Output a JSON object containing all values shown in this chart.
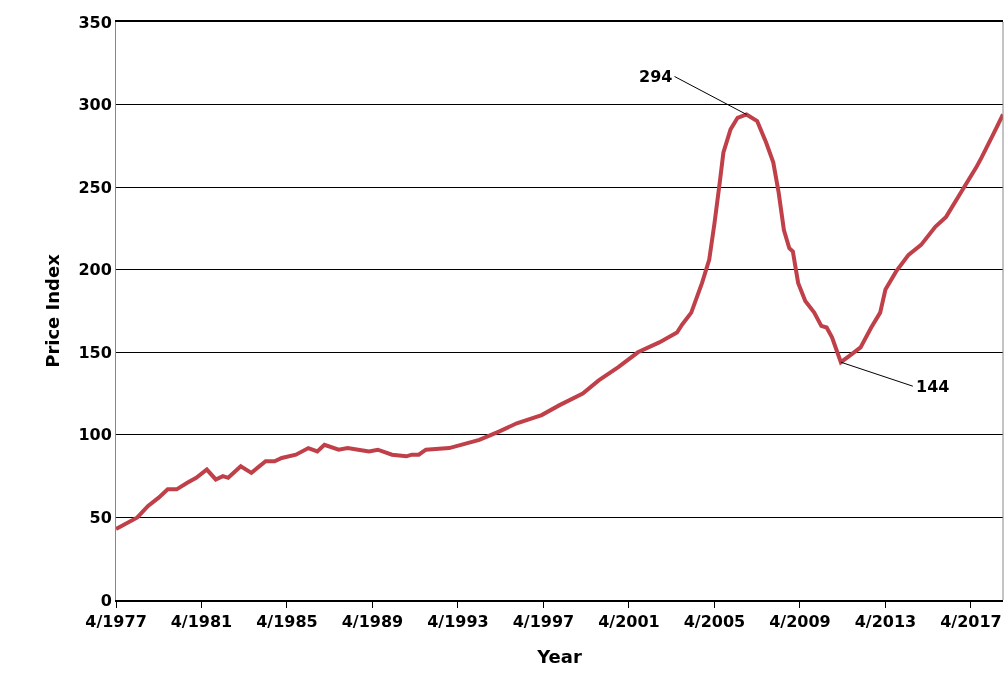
{
  "chart_data": {
    "type": "line",
    "xlabel": "Year",
    "ylabel": "Price Index",
    "x": [
      "1977-04",
      "1978-04",
      "1978-10",
      "1979-04",
      "1979-09",
      "1980-02",
      "1980-08",
      "1981-01",
      "1981-07",
      "1981-12",
      "1982-04",
      "1982-07",
      "1983-02",
      "1983-08",
      "1984-04",
      "1984-09",
      "1985-01",
      "1985-09",
      "1986-04",
      "1986-09",
      "1987-01",
      "1987-09",
      "1988-02",
      "1988-08",
      "1989-02",
      "1989-07",
      "1990-03",
      "1990-11",
      "1991-02",
      "1991-06",
      "1991-10",
      "1992-11",
      "1994-04",
      "1995-03",
      "1996-01",
      "1997-03",
      "1998-01",
      "1999-02",
      "1999-11",
      "2000-10",
      "2001-09",
      "2002-09",
      "2003-07",
      "2003-10",
      "2004-03",
      "2004-09",
      "2005-01",
      "2005-04",
      "2005-07",
      "2005-09",
      "2006-01",
      "2006-05",
      "2006-10",
      "2007-04",
      "2007-09",
      "2008-01",
      "2008-04",
      "2008-07",
      "2008-10",
      "2008-12",
      "2009-03",
      "2009-07",
      "2009-12",
      "2010-04",
      "2010-07",
      "2010-10",
      "2011-03",
      "2011-08",
      "2012-02",
      "2012-08",
      "2013-01",
      "2013-04",
      "2013-10",
      "2014-05",
      "2014-12",
      "2015-08",
      "2016-02",
      "2016-11",
      "2017-07",
      "2017-10",
      "2018-05",
      "2018-10"
    ],
    "series": [
      {
        "color": "#c0404a",
        "values": [
          43,
          50,
          57,
          62,
          67,
          67,
          71,
          74,
          79,
          73,
          75,
          74,
          81,
          77,
          84,
          84,
          86,
          88,
          92,
          90,
          94,
          91,
          92,
          91,
          90,
          91,
          88,
          87,
          88,
          88,
          91,
          92,
          97,
          102,
          107,
          112,
          118,
          125,
          133,
          141,
          150,
          156,
          162,
          167,
          174,
          192,
          206,
          228,
          253,
          271,
          285,
          292,
          294,
          290,
          277,
          265,
          247,
          224,
          213,
          211,
          192,
          181,
          174,
          166,
          165,
          159,
          144,
          148,
          153,
          165,
          174,
          188,
          199,
          209,
          215,
          226,
          232,
          248,
          262,
          268,
          283,
          294
        ]
      }
    ],
    "xlim": [
      "1977-04",
      "2018-10"
    ],
    "xticks": [
      {
        "value": "1977-04",
        "label": "4/1977"
      },
      {
        "value": "1981-04",
        "label": "4/1981"
      },
      {
        "value": "1985-04",
        "label": "4/1985"
      },
      {
        "value": "1989-04",
        "label": "4/1989"
      },
      {
        "value": "1993-04",
        "label": "4/1993"
      },
      {
        "value": "1997-04",
        "label": "4/1997"
      },
      {
        "value": "2001-04",
        "label": "4/2001"
      },
      {
        "value": "2005-04",
        "label": "4/2005"
      },
      {
        "value": "2009-04",
        "label": "4/2009"
      },
      {
        "value": "2013-04",
        "label": "4/2013"
      },
      {
        "value": "2017-04",
        "label": "4/2017"
      }
    ],
    "ylim": [
      0,
      350
    ],
    "yticks": [
      0,
      50,
      100,
      150,
      200,
      250,
      300,
      350
    ],
    "grid": "y",
    "marker": "none",
    "line_style": "solid",
    "annotations": [
      {
        "text": "294",
        "x": "2006-10",
        "y": 294
      },
      {
        "text": "144",
        "x": "2011-03",
        "y": 144
      }
    ]
  }
}
